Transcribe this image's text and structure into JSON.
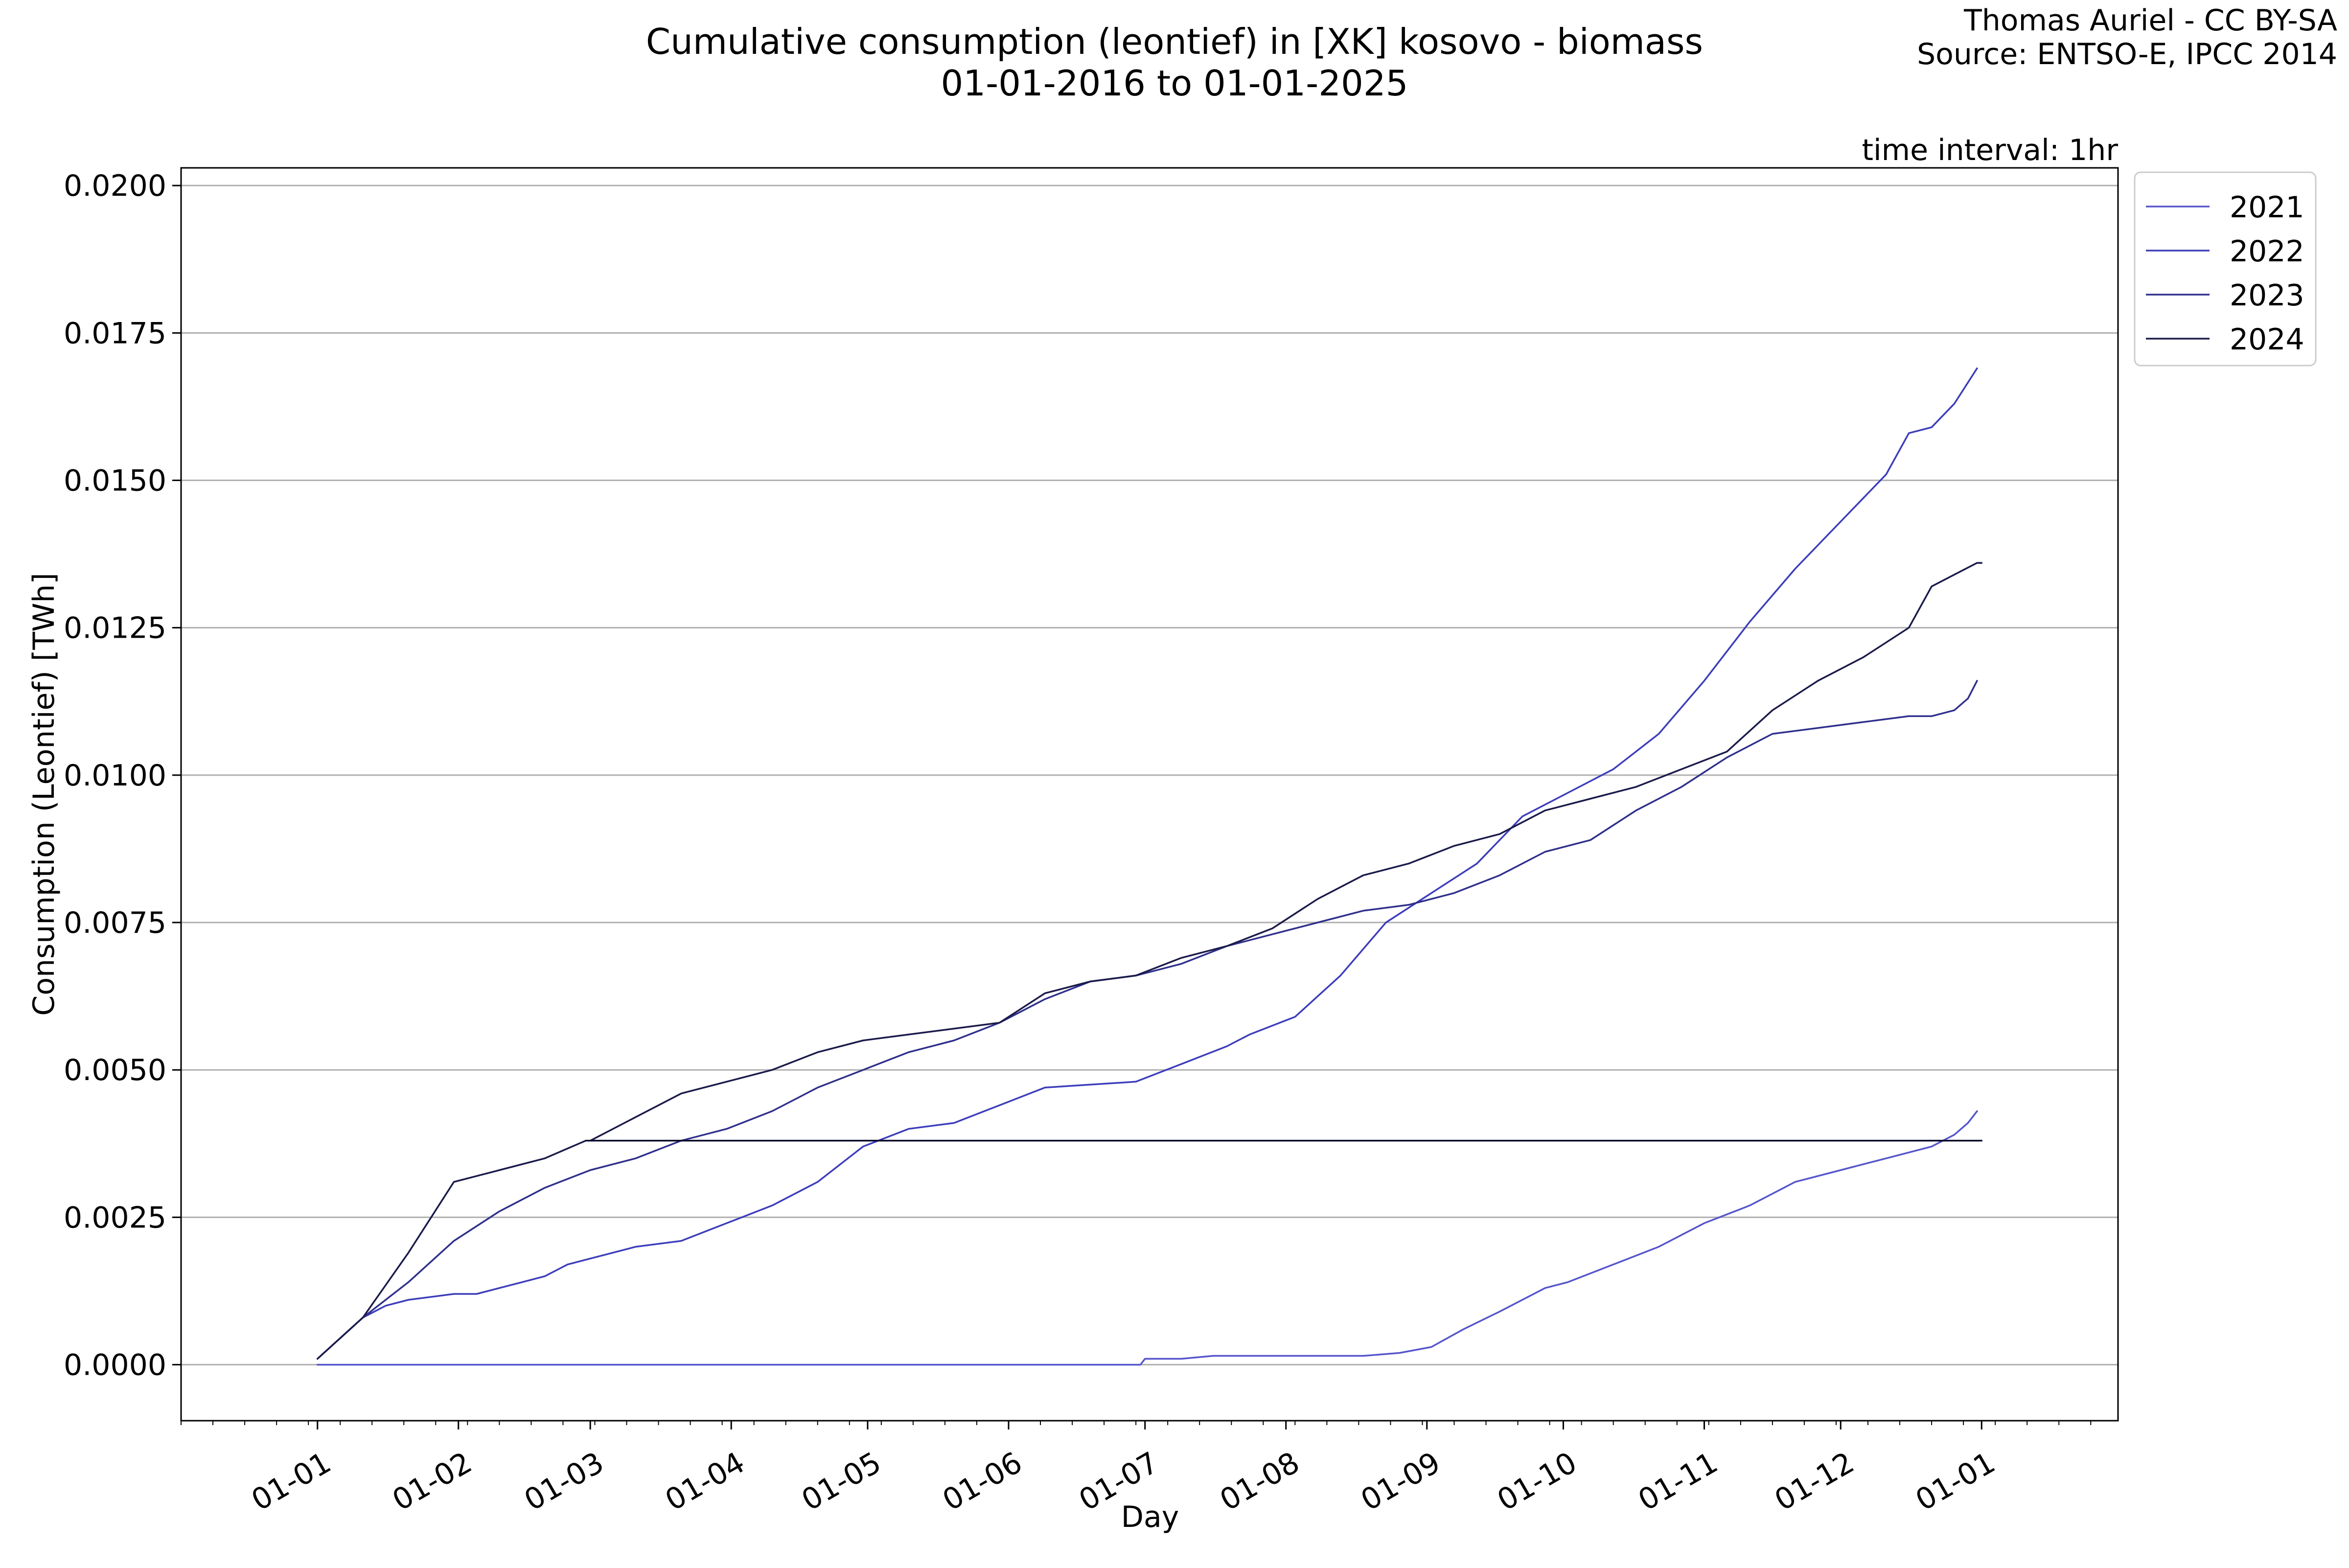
{
  "chart_data": {
    "type": "line",
    "title_line1": "Cumulative consumption (leontief) in [XK] kosovo - biomass",
    "title_line2": "01-01-2016 to 01-01-2025",
    "credit_line1": "Thomas Auriel - CC BY-SA",
    "credit_line2": "Source: ENTSO-E, IPCC 2014",
    "interval_note": "time interval: 1hr",
    "xlabel": "Day",
    "ylabel": "Consumption (Leontief) [TWh]",
    "xlim": [
      -30,
      396
    ],
    "ylim": [
      -0.00095,
      0.0203
    ],
    "x_ticks": [
      0,
      31,
      60,
      91,
      121,
      152,
      182,
      213,
      244,
      274,
      305,
      335,
      366
    ],
    "x_tick_labels": [
      "01-01",
      "01-02",
      "01-03",
      "01-04",
      "01-05",
      "01-06",
      "01-07",
      "01-08",
      "01-09",
      "01-10",
      "01-11",
      "01-12",
      "01-01"
    ],
    "y_ticks": [
      0.0,
      0.0025,
      0.005,
      0.0075,
      0.01,
      0.0125,
      0.015,
      0.0175,
      0.02
    ],
    "y_tick_labels": [
      "0.0000",
      "0.0025",
      "0.0050",
      "0.0075",
      "0.0100",
      "0.0125",
      "0.0150",
      "0.0175",
      "0.0200"
    ],
    "grid": "horizontal",
    "legend_position": "outside-top-right",
    "series": [
      {
        "name": "2021",
        "color": "#5555cc",
        "x": [
          0,
          30,
          60,
          90,
          120,
          150,
          180,
          181,
          182,
          190,
          197,
          199,
          210,
          220,
          230,
          238,
          245,
          252,
          260,
          270,
          275,
          285,
          295,
          305,
          315,
          325,
          335,
          345,
          355,
          360,
          363,
          365
        ],
        "y": [
          0.0,
          0.0,
          0.0,
          0.0,
          0.0,
          0.0,
          0.0,
          0.0,
          0.0001,
          0.0001,
          0.00015,
          0.00015,
          0.00015,
          0.00015,
          0.00015,
          0.0002,
          0.0003,
          0.0006,
          0.0009,
          0.0013,
          0.0014,
          0.0017,
          0.002,
          0.0024,
          0.0027,
          0.0031,
          0.0033,
          0.0035,
          0.0037,
          0.0039,
          0.0041,
          0.0043
        ]
      },
      {
        "name": "2022",
        "color": "#3d3dbb",
        "x": [
          0,
          10,
          15,
          20,
          30,
          35,
          45,
          50,
          55,
          60,
          70,
          80,
          90,
          100,
          110,
          120,
          130,
          140,
          150,
          160,
          170,
          180,
          190,
          200,
          205,
          215,
          225,
          235,
          245,
          255,
          265,
          275,
          285,
          295,
          305,
          315,
          325,
          335,
          345,
          350,
          355,
          360,
          365
        ],
        "y": [
          0.0001,
          0.0008,
          0.001,
          0.0011,
          0.0012,
          0.0012,
          0.0014,
          0.0015,
          0.0017,
          0.0018,
          0.002,
          0.0021,
          0.0024,
          0.0027,
          0.0031,
          0.0037,
          0.004,
          0.0041,
          0.0044,
          0.0047,
          0.00475,
          0.0048,
          0.0051,
          0.0054,
          0.0056,
          0.0059,
          0.0066,
          0.0075,
          0.008,
          0.0085,
          0.0093,
          0.0097,
          0.0101,
          0.0107,
          0.0116,
          0.0126,
          0.0135,
          0.0143,
          0.0151,
          0.0158,
          0.0159,
          0.0163,
          0.0169
        ]
      },
      {
        "name": "2023",
        "color": "#2f2f8c",
        "x": [
          0,
          10,
          20,
          30,
          40,
          50,
          60,
          70,
          80,
          90,
          100,
          110,
          120,
          130,
          140,
          150,
          160,
          170,
          180,
          190,
          200,
          210,
          220,
          230,
          240,
          250,
          260,
          270,
          280,
          290,
          300,
          310,
          320,
          330,
          340,
          350,
          355,
          360,
          363,
          365
        ],
        "y": [
          0.0001,
          0.0008,
          0.0014,
          0.0021,
          0.0026,
          0.003,
          0.0033,
          0.0035,
          0.0038,
          0.004,
          0.0043,
          0.0047,
          0.005,
          0.0053,
          0.0055,
          0.0058,
          0.0062,
          0.0065,
          0.0066,
          0.0068,
          0.0071,
          0.0073,
          0.0075,
          0.0077,
          0.0078,
          0.008,
          0.0083,
          0.0087,
          0.0089,
          0.0094,
          0.0098,
          0.0103,
          0.0107,
          0.0108,
          0.0109,
          0.011,
          0.011,
          0.0111,
          0.0113,
          0.0116
        ]
      },
      {
        "name": "2024",
        "color": "#1a1a4a",
        "x": [
          0,
          10,
          20,
          30,
          40,
          50,
          59,
          60,
          70,
          80,
          90,
          100,
          110,
          120,
          130,
          140,
          150,
          160,
          170,
          180,
          190,
          200,
          210,
          220,
          230,
          240,
          250,
          260,
          270,
          280,
          290,
          300,
          310,
          320,
          330,
          340,
          350,
          355,
          360,
          365,
          366
        ],
        "y": [
          0.0001,
          0.0008,
          0.0019,
          0.0031,
          0.0033,
          0.0035,
          0.0038,
          0.0038,
          0.0042,
          0.0046,
          0.0048,
          0.005,
          0.0053,
          0.0055,
          0.0056,
          0.0057,
          0.0058,
          0.0063,
          0.0065,
          0.0066,
          0.0069,
          0.0071,
          0.0074,
          0.0079,
          0.0083,
          0.0085,
          0.0088,
          0.009,
          0.0094,
          0.0096,
          0.0098,
          0.0101,
          0.0104,
          0.0111,
          0.0116,
          0.012,
          0.0125,
          0.0132,
          0.0134,
          0.0136,
          0.0136
        ]
      },
      {
        "name": "",
        "color": "#0a0a2a",
        "x": [
          59,
          366
        ],
        "y": [
          0.0038,
          0.0038
        ]
      }
    ]
  }
}
